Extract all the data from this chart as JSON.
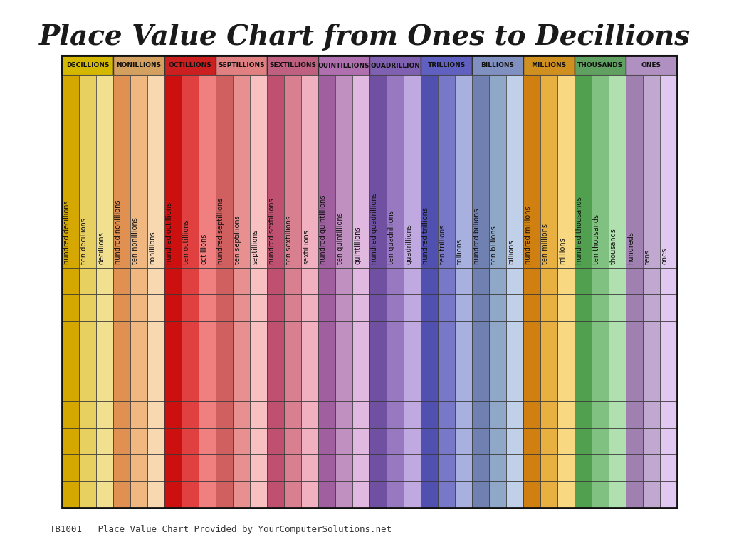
{
  "title": "Place Value Chart from Ones to Decillions",
  "footer": "TB1001   Place Value Chart Provided by YourComputerSolutions.net",
  "groups": [
    {
      "name": "DECILLIONS",
      "header_color": "#d4b800",
      "cols": [
        "hundred decillions",
        "ten decillions",
        "decillions"
      ],
      "colors": [
        "#d4a800",
        "#e8d060",
        "#f0e090"
      ]
    },
    {
      "name": "NONILLIONS",
      "header_color": "#d4a060",
      "cols": [
        "hundred nonillions",
        "ten nonillions",
        "nonillions"
      ],
      "colors": [
        "#e09050",
        "#f0b880",
        "#f8d8b0"
      ]
    },
    {
      "name": "OCTILLIONS",
      "header_color": "#cc2020",
      "cols": [
        "hundred octillions",
        "ten octillions",
        "octillions"
      ],
      "colors": [
        "#cc1010",
        "#e04040",
        "#f08080"
      ]
    },
    {
      "name": "SEPTILLIONS",
      "header_color": "#e08080",
      "cols": [
        "hundred septillions",
        "ten septillions",
        "septillions"
      ],
      "colors": [
        "#d06060",
        "#e89090",
        "#f8c0c0"
      ]
    },
    {
      "name": "SEXTILLIONS",
      "header_color": "#c06080",
      "cols": [
        "hundred sextillions",
        "ten sextillions",
        "sextillions"
      ],
      "colors": [
        "#c05070",
        "#d88090",
        "#f0b0c0"
      ]
    },
    {
      "name": "QUINTILLIONS",
      "header_color": "#b070b0",
      "cols": [
        "hundred quintillions",
        "ten quintillions",
        "quintillions"
      ],
      "colors": [
        "#a060a0",
        "#c090c0",
        "#e0b8e0"
      ]
    },
    {
      "name": "QUADRILLION",
      "header_color": "#8060b0",
      "cols": [
        "hundred quadrillions",
        "ten quadrillions",
        "quadrillions"
      ],
      "colors": [
        "#7050a0",
        "#9878c0",
        "#c0a8e0"
      ]
    },
    {
      "name": "TRILLIONS",
      "header_color": "#6060c0",
      "cols": [
        "hundred trillions",
        "ten trillions",
        "trillions"
      ],
      "colors": [
        "#5050b0",
        "#7878c8",
        "#a8b0e0"
      ]
    },
    {
      "name": "BILLIONS",
      "header_color": "#8090c0",
      "cols": [
        "hundred billions",
        "ten billions",
        "billions"
      ],
      "colors": [
        "#7080b0",
        "#90a8c8",
        "#c0d0e8"
      ]
    },
    {
      "name": "MILLIONS",
      "header_color": "#d09020",
      "cols": [
        "hundred millions",
        "ten millions",
        "millions"
      ],
      "colors": [
        "#d08010",
        "#e8b040",
        "#f8d880"
      ]
    },
    {
      "name": "THOUSANDS",
      "header_color": "#60a060",
      "cols": [
        "hundred thousands",
        "ten thousands",
        "thousands"
      ],
      "colors": [
        "#50a050",
        "#80c080",
        "#b0e0b0"
      ]
    },
    {
      "name": "ONES",
      "header_color": "#b090c0",
      "cols": [
        "hundreds",
        "tens",
        "ones"
      ],
      "colors": [
        "#a080b0",
        "#c0a8d0",
        "#e0c8f0"
      ]
    }
  ],
  "num_data_rows": 9,
  "background_color": "#ffffff"
}
